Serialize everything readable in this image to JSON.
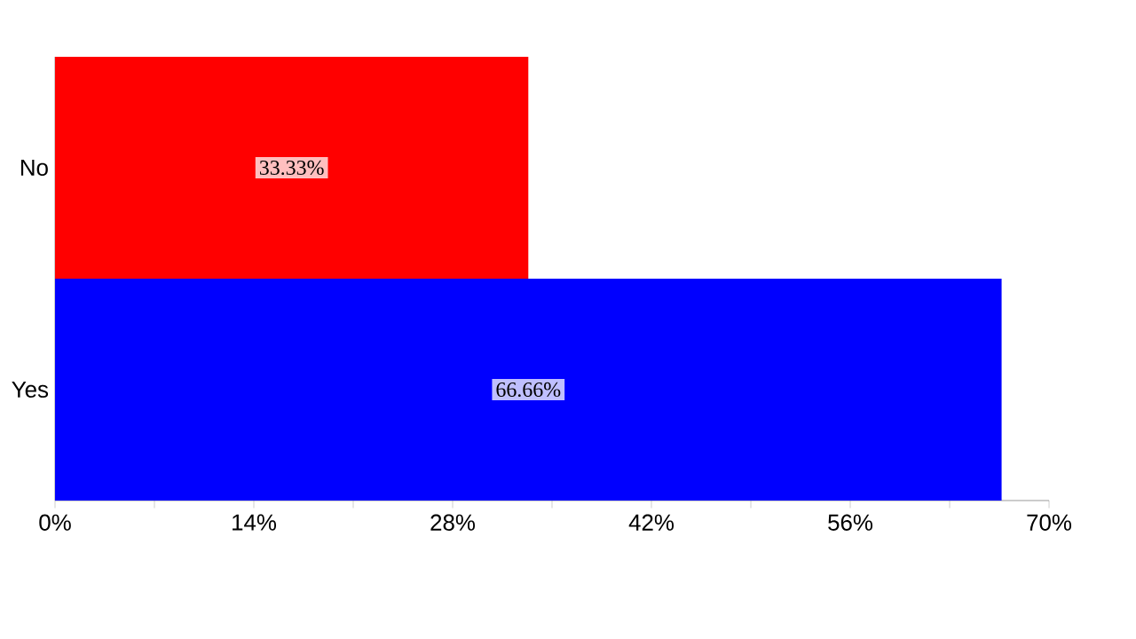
{
  "chart_data": {
    "type": "bar",
    "orientation": "horizontal",
    "categories": [
      "No",
      "Yes"
    ],
    "values": [
      33.33,
      66.66
    ],
    "colors": [
      "#ff0000",
      "#0000ff"
    ],
    "value_labels": [
      "33.33%",
      "66.66%"
    ],
    "xlim": [
      0,
      70
    ],
    "xticks": [
      {
        "value": 0,
        "label": "0%"
      },
      {
        "value": 7,
        "label": null
      },
      {
        "value": 14,
        "label": "14%"
      },
      {
        "value": 21,
        "label": null
      },
      {
        "value": 28,
        "label": "28%"
      },
      {
        "value": 35,
        "label": null
      },
      {
        "value": 42,
        "label": "42%"
      },
      {
        "value": 49,
        "label": null
      },
      {
        "value": 56,
        "label": "56%"
      },
      {
        "value": 63,
        "label": null
      },
      {
        "value": 70,
        "label": "70%"
      }
    ]
  }
}
